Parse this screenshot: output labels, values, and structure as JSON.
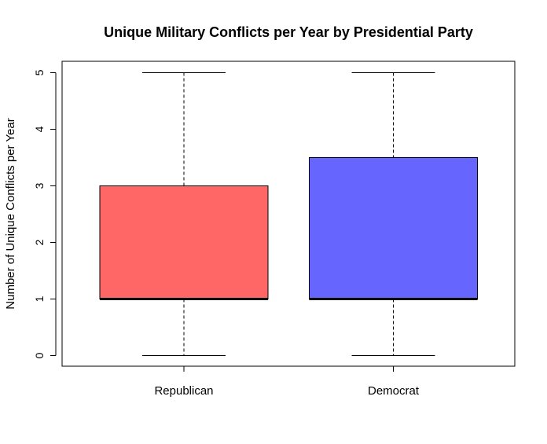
{
  "chart_data": {
    "type": "boxplot",
    "title": "Unique Military Conflicts per Year by Presidential Party",
    "xlabel": "",
    "ylabel": "Number of Unique Conflicts per Year",
    "ylim": [
      0,
      5
    ],
    "yticks": [
      0,
      1,
      2,
      3,
      4,
      5
    ],
    "grid": false,
    "legend": "none",
    "categories": [
      "Republican",
      "Democrat"
    ],
    "boxes": [
      {
        "category": "Republican",
        "min": 0,
        "q1": 1,
        "median": 1,
        "q3": 3,
        "max": 5,
        "color": "#ff6666"
      },
      {
        "category": "Democrat",
        "min": 0,
        "q1": 1,
        "median": 1,
        "q3": 3.5,
        "max": 5,
        "color": "#6666ff"
      }
    ]
  }
}
